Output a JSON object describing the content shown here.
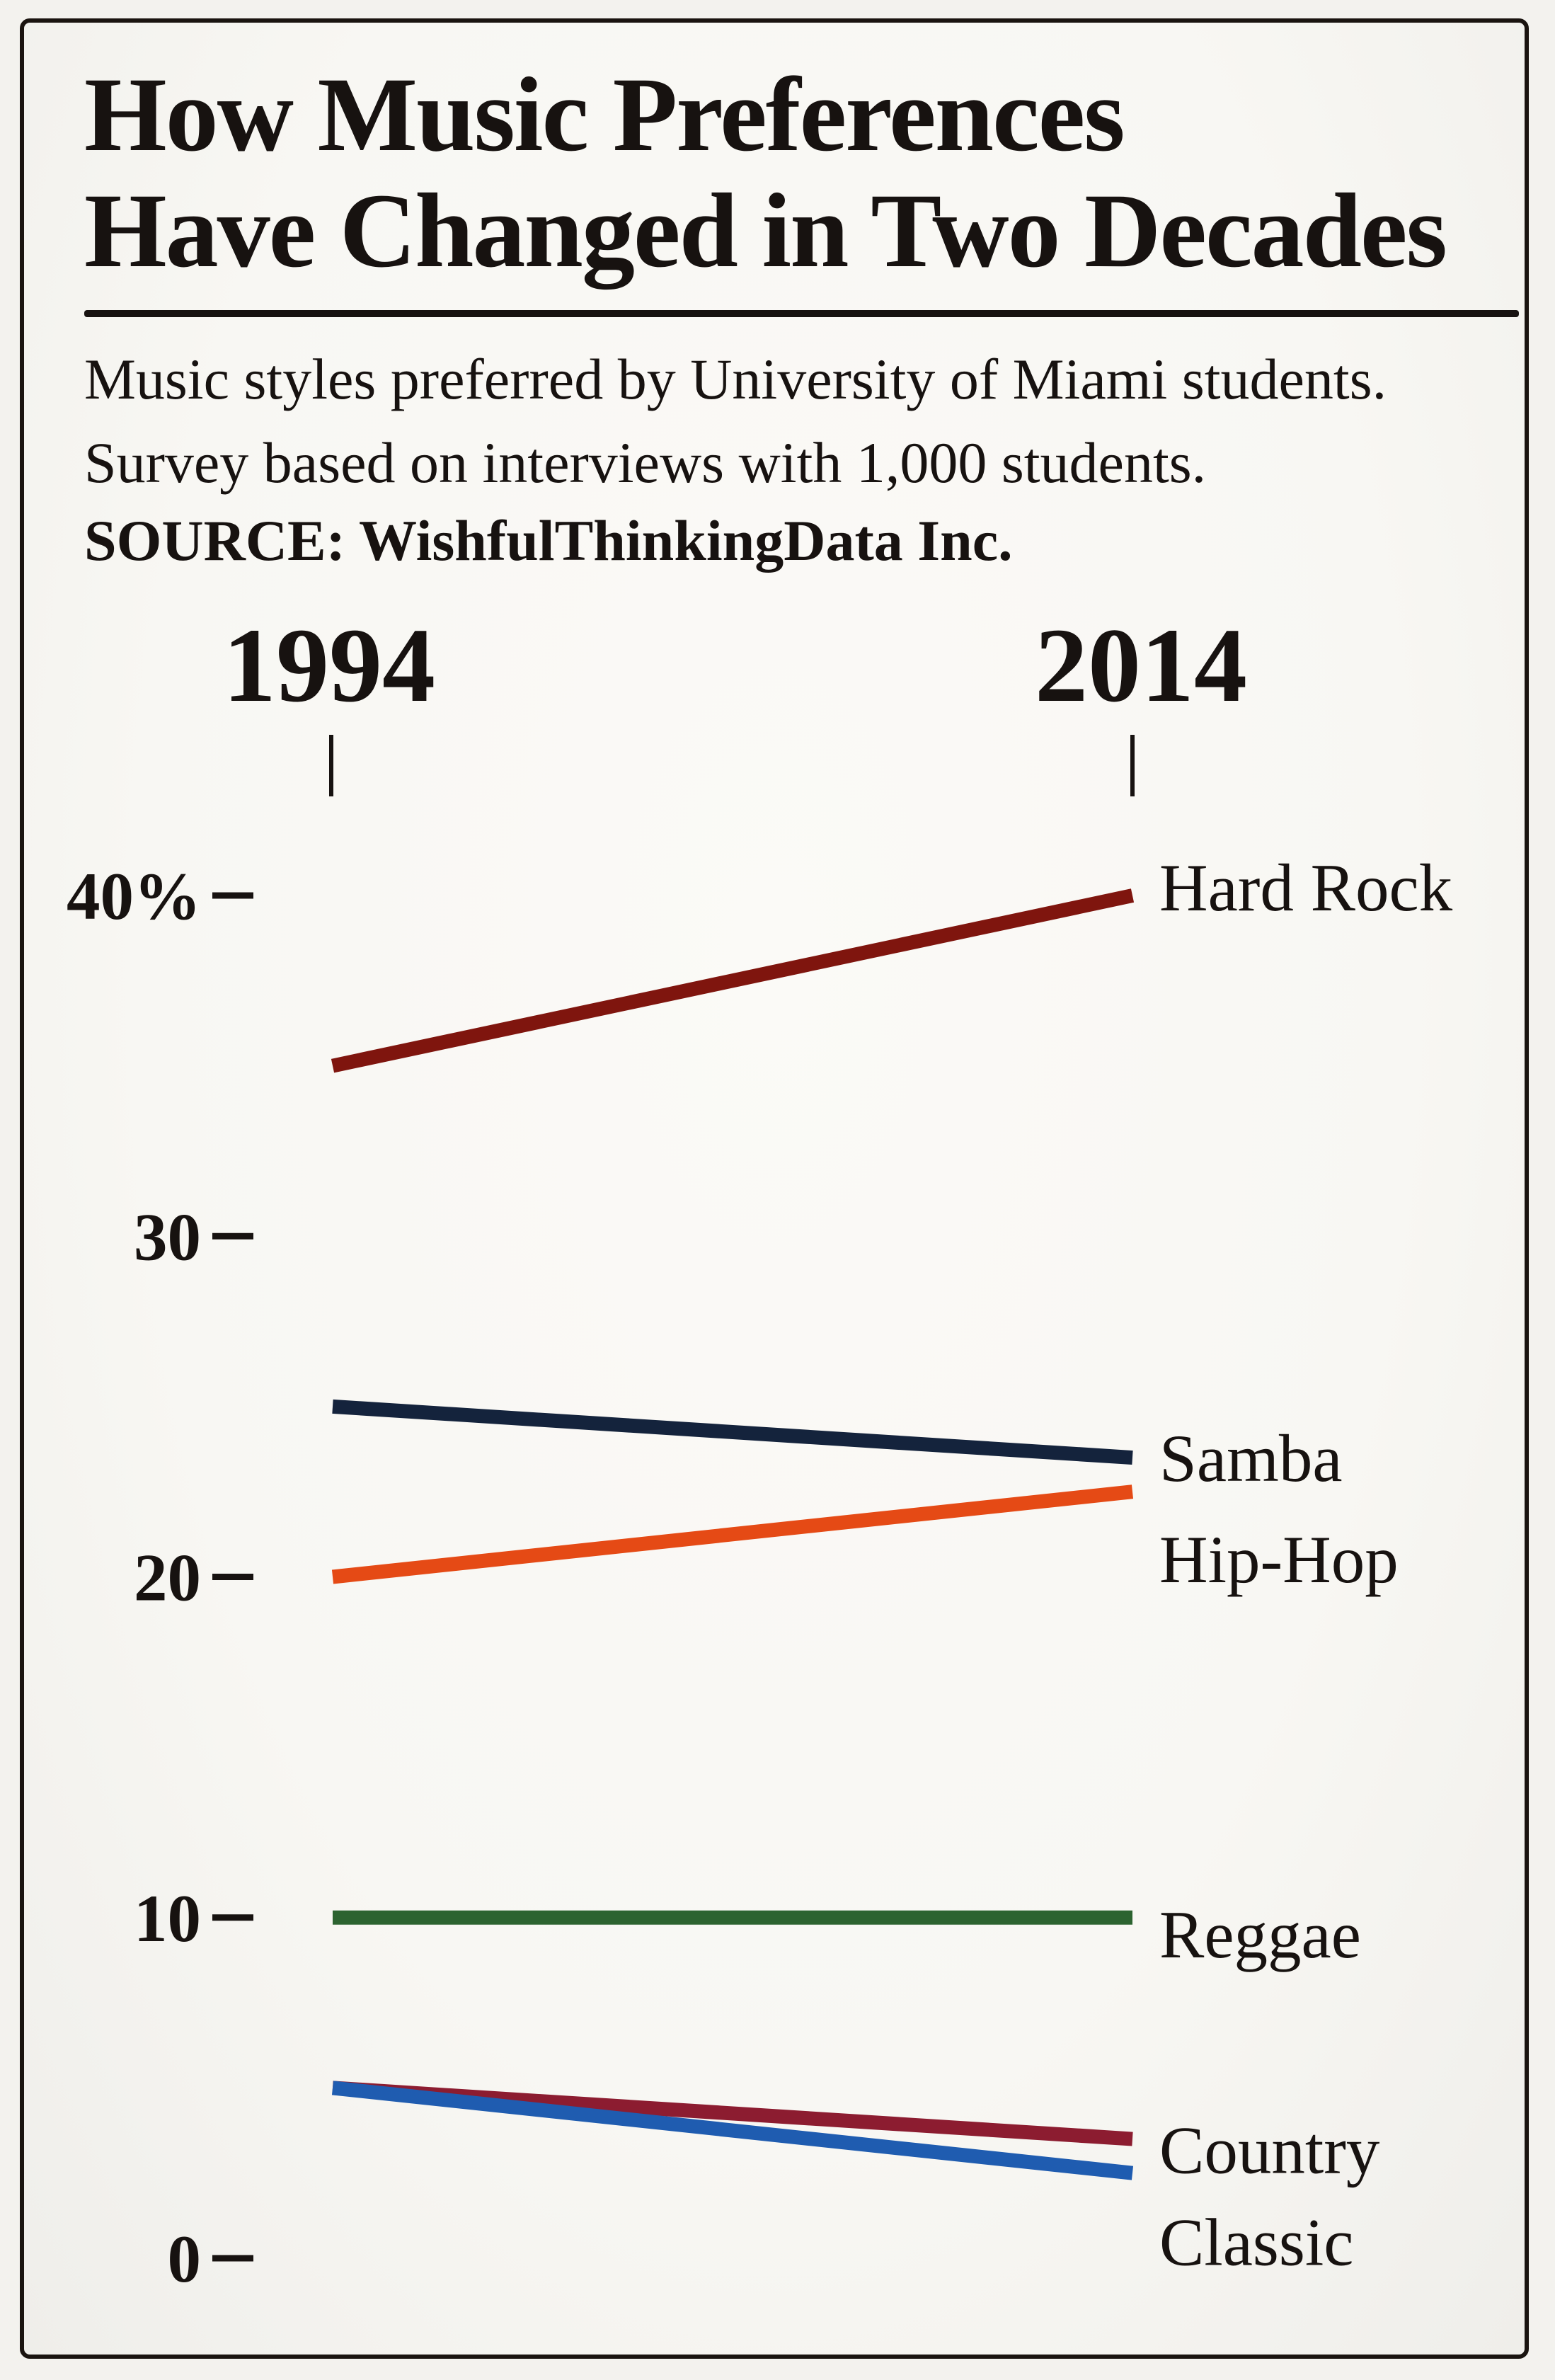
{
  "header": {
    "title_line1": "How Music Preferences",
    "title_line2": "Have Changed in Two Decades",
    "subtitle_line1": "Music styles preferred by University of Miami students.",
    "subtitle_line2": "Survey based on interviews with 1,000 students.",
    "source": "SOURCE: WishfulThinkingData Inc."
  },
  "chart_data": {
    "type": "line",
    "variant": "slopegraph",
    "title": "How Music Preferences Have Changed in Two Decades",
    "x": [
      1994,
      2014
    ],
    "x_labels": [
      "1994",
      "2014"
    ],
    "y_unit": "%",
    "ylim": [
      0,
      42
    ],
    "grid": false,
    "legend_position": "inline-right",
    "y_ticks": [
      {
        "value": 40,
        "label": "40%"
      },
      {
        "value": 30,
        "label": "30"
      },
      {
        "value": 20,
        "label": "20"
      },
      {
        "value": 10,
        "label": "10"
      },
      {
        "value": 0,
        "label": "0"
      }
    ],
    "series": [
      {
        "name": "Hard Rock",
        "values": [
          35,
          40
        ],
        "color": "#7f150e",
        "label_dy": -12
      },
      {
        "name": "Samba",
        "values": [
          25,
          23.5
        ],
        "color": "#14233c",
        "label_dy": 0
      },
      {
        "name": "Hip-Hop",
        "values": [
          20,
          22.5
        ],
        "color": "#e54a15",
        "label_dy": 95
      },
      {
        "name": "Reggae",
        "values": [
          10,
          10
        ],
        "color": "#2c6330",
        "label_dy": 23
      },
      {
        "name": "Country",
        "values": [
          5,
          3.5
        ],
        "color": "#8c1c30",
        "label_dy": 15
      },
      {
        "name": "Classic",
        "values": [
          5,
          2.5
        ],
        "color": "#1f5cb0",
        "label_dy": 97
      }
    ]
  }
}
